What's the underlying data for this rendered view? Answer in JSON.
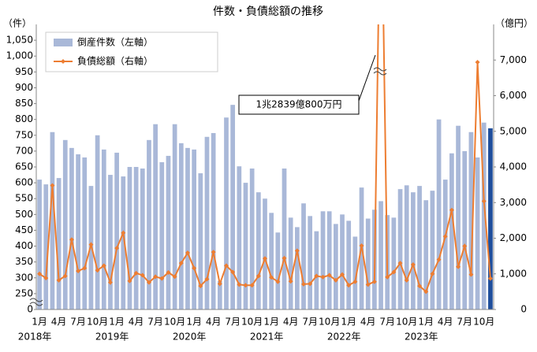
{
  "chart_data": {
    "type": "bar-line",
    "title": "件数・負債総額の推移",
    "y_axis_label": "（件）",
    "y2_axis_label": "（億円）",
    "annotation": "1兆2839億800万円",
    "categories": [
      "1月",
      null,
      null,
      "4月",
      null,
      null,
      "7月",
      null,
      null,
      "10月",
      null,
      null,
      "1月",
      null,
      null,
      "4月",
      null,
      null,
      "7月",
      null,
      null,
      "10月",
      null,
      null,
      "1月",
      null,
      null,
      "4月",
      null,
      null,
      "7月",
      null,
      null,
      "10月",
      null,
      null,
      "1月",
      null,
      null,
      "4月",
      null,
      null,
      "7月",
      null,
      null,
      "10月",
      null,
      null,
      "1月",
      null,
      null,
      "4月",
      null,
      null,
      "7月",
      null,
      null,
      "10月",
      null,
      null,
      "1月",
      null,
      null,
      "4月",
      null,
      null,
      "7月",
      null,
      null,
      "10月",
      null
    ],
    "year_labels": [
      "2018年",
      "2019年",
      "2020年",
      "2021年",
      "2022年",
      "2023年"
    ],
    "series": [
      {
        "name": "倒産件数（左軸）",
        "color": "#a9b8d8",
        "last_color": "#1f4e9c",
        "values": [
          610,
          595,
          760,
          615,
          735,
          710,
          690,
          680,
          590,
          750,
          705,
          625,
          695,
          620,
          650,
          650,
          645,
          735,
          785,
          665,
          685,
          785,
          725,
          710,
          705,
          630,
          745,
          757,
          290,
          806,
          846,
          652,
          600,
          645,
          570,
          550,
          505,
          443,
          645,
          490,
          460,
          535,
          495,
          447,
          510,
          510,
          470,
          500,
          480,
          430,
          585,
          487,
          515,
          542,
          498,
          490,
          580,
          592,
          570,
          590,
          545,
          575,
          800,
          610,
          693,
          780,
          700,
          760,
          680,
          790,
          772
        ]
      },
      {
        "name": "負債総額（右軸）",
        "color": "#ed7d31",
        "axis": "y2",
        "values": [
          1000,
          880,
          3480,
          820,
          940,
          1960,
          1080,
          1160,
          1820,
          1100,
          1230,
          760,
          1720,
          2150,
          800,
          1020,
          960,
          760,
          920,
          870,
          1040,
          920,
          1300,
          1590,
          1160,
          660,
          850,
          1610,
          720,
          1230,
          1050,
          700,
          680,
          680,
          940,
          1430,
          900,
          780,
          1440,
          790,
          1650,
          710,
          720,
          940,
          910,
          960,
          820,
          980,
          680,
          780,
          1790,
          700,
          780,
          12839,
          910,
          1050,
          1300,
          820,
          1260,
          660,
          500,
          1000,
          1400,
          2050,
          2790,
          1200,
          1780,
          980,
          6940,
          3040,
          870
        ]
      }
    ],
    "ylim": [
      200,
      1100
    ],
    "yticks": [
      {
        "value": 200,
        "label": "0"
      },
      250,
      300,
      350,
      400,
      450,
      500,
      550,
      600,
      650,
      700,
      750,
      800,
      850,
      900,
      950,
      {
        "value": 1000,
        "label": "1,000"
      },
      {
        "value": 1050,
        "label": "1,050"
      }
    ],
    "y2lim": [
      0,
      8000
    ],
    "y2ticks": [
      0,
      {
        "value": 1000,
        "label": "1,000"
      },
      {
        "value": 2000,
        "label": "2,000"
      },
      {
        "value": 3000,
        "label": "3,000"
      },
      {
        "value": 4000,
        "label": "4,000"
      },
      {
        "value": 5000,
        "label": "5,000"
      },
      {
        "value": 6000,
        "label": "6,000"
      },
      {
        "value": 7000,
        "label": "7,000"
      }
    ],
    "legend": "upper-left"
  }
}
